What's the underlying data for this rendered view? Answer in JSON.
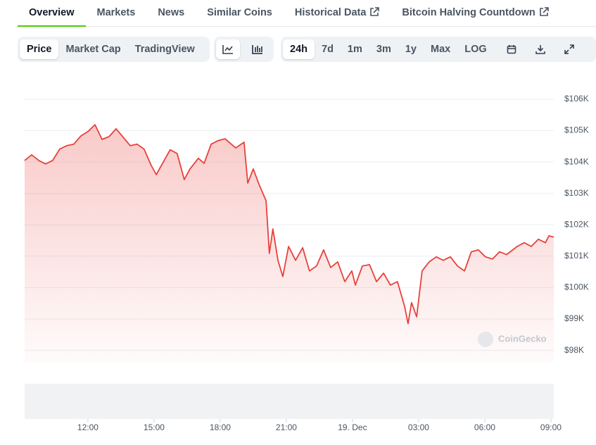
{
  "tabs": [
    "Overview",
    "Markets",
    "News",
    "Similar Coins",
    "Historical Data",
    "Bitcoin Halving Countdown"
  ],
  "active_tab": 0,
  "view_buttons": [
    "Price",
    "Market Cap",
    "TradingView"
  ],
  "active_view": 0,
  "range_buttons": [
    "24h",
    "7d",
    "1m",
    "3m",
    "1y",
    "Max",
    "LOG"
  ],
  "active_range": 0,
  "watermark": "CoinGecko",
  "chart_data": {
    "type": "line",
    "color": "#e8413c",
    "grid": true,
    "x": [
      9.13,
      9.45,
      9.77,
      10.08,
      10.4,
      10.72,
      11.04,
      11.36,
      11.68,
      12,
      12.32,
      12.64,
      12.96,
      13.28,
      13.6,
      13.92,
      14.23,
      14.55,
      14.87,
      15.1,
      15.42,
      15.73,
      16.05,
      16.37,
      16.63,
      17.01,
      17.27,
      17.59,
      17.9,
      18.22,
      18.7,
      19.08,
      19.25,
      19.5,
      19.76,
      20.08,
      20.23,
      20.39,
      20.62,
      20.84,
      21.1,
      21.42,
      21.74,
      22.05,
      22.37,
      22.69,
      23.01,
      23.33,
      23.65,
      23.97,
      24.13,
      24.45,
      24.77,
      25.09,
      25.41,
      25.72,
      26.04,
      26.36,
      26.52,
      26.68,
      26.91,
      27.16,
      27.48,
      27.8,
      28.12,
      28.44,
      28.76,
      29.08,
      29.39,
      29.71,
      30.03,
      30.35,
      30.67,
      30.99,
      31.47,
      31.79,
      32.11,
      32.43,
      32.75,
      32.91,
      33.13
    ],
    "values": [
      104050,
      104230,
      104050,
      103940,
      104050,
      104410,
      104520,
      104570,
      104830,
      104970,
      105190,
      104720,
      104810,
      105060,
      104790,
      104520,
      104570,
      104410,
      103890,
      103600,
      104000,
      104390,
      104270,
      103440,
      103780,
      104120,
      103960,
      104570,
      104680,
      104740,
      104450,
      104630,
      103330,
      103780,
      103290,
      102770,
      101090,
      101870,
      100870,
      100350,
      101310,
      100870,
      101270,
      100530,
      100690,
      101200,
      100640,
      100820,
      100190,
      100530,
      100080,
      100690,
      100730,
      100190,
      100460,
      100080,
      100190,
      99410,
      98850,
      99520,
      99070,
      100530,
      100820,
      100980,
      100870,
      100980,
      100690,
      100530,
      101140,
      101200,
      100980,
      100910,
      101140,
      101050,
      101310,
      101430,
      101310,
      101540,
      101430,
      101650,
      101610
    ],
    "xlim": [
      9.13,
      33.13
    ],
    "ylim": [
      97610,
      106470
    ],
    "xticks": [
      {
        "value": 12,
        "label": "12:00"
      },
      {
        "value": 15,
        "label": "15:00"
      },
      {
        "value": 18,
        "label": "18:00"
      },
      {
        "value": 21,
        "label": "21:00"
      },
      {
        "value": 24,
        "label": "19. Dec"
      },
      {
        "value": 27,
        "label": "03:00"
      },
      {
        "value": 30,
        "label": "06:00"
      },
      {
        "value": 33,
        "label": "09:00"
      }
    ],
    "yticks": [
      {
        "value": 98000,
        "label": "$98K"
      },
      {
        "value": 99000,
        "label": "$99K"
      },
      {
        "value": 100000,
        "label": "$100K"
      },
      {
        "value": 101000,
        "label": "$101K"
      },
      {
        "value": 102000,
        "label": "$102K"
      },
      {
        "value": 103000,
        "label": "$103K"
      },
      {
        "value": 104000,
        "label": "$104K"
      },
      {
        "value": 105000,
        "label": "$105K"
      },
      {
        "value": 106000,
        "label": "$106K"
      }
    ]
  }
}
